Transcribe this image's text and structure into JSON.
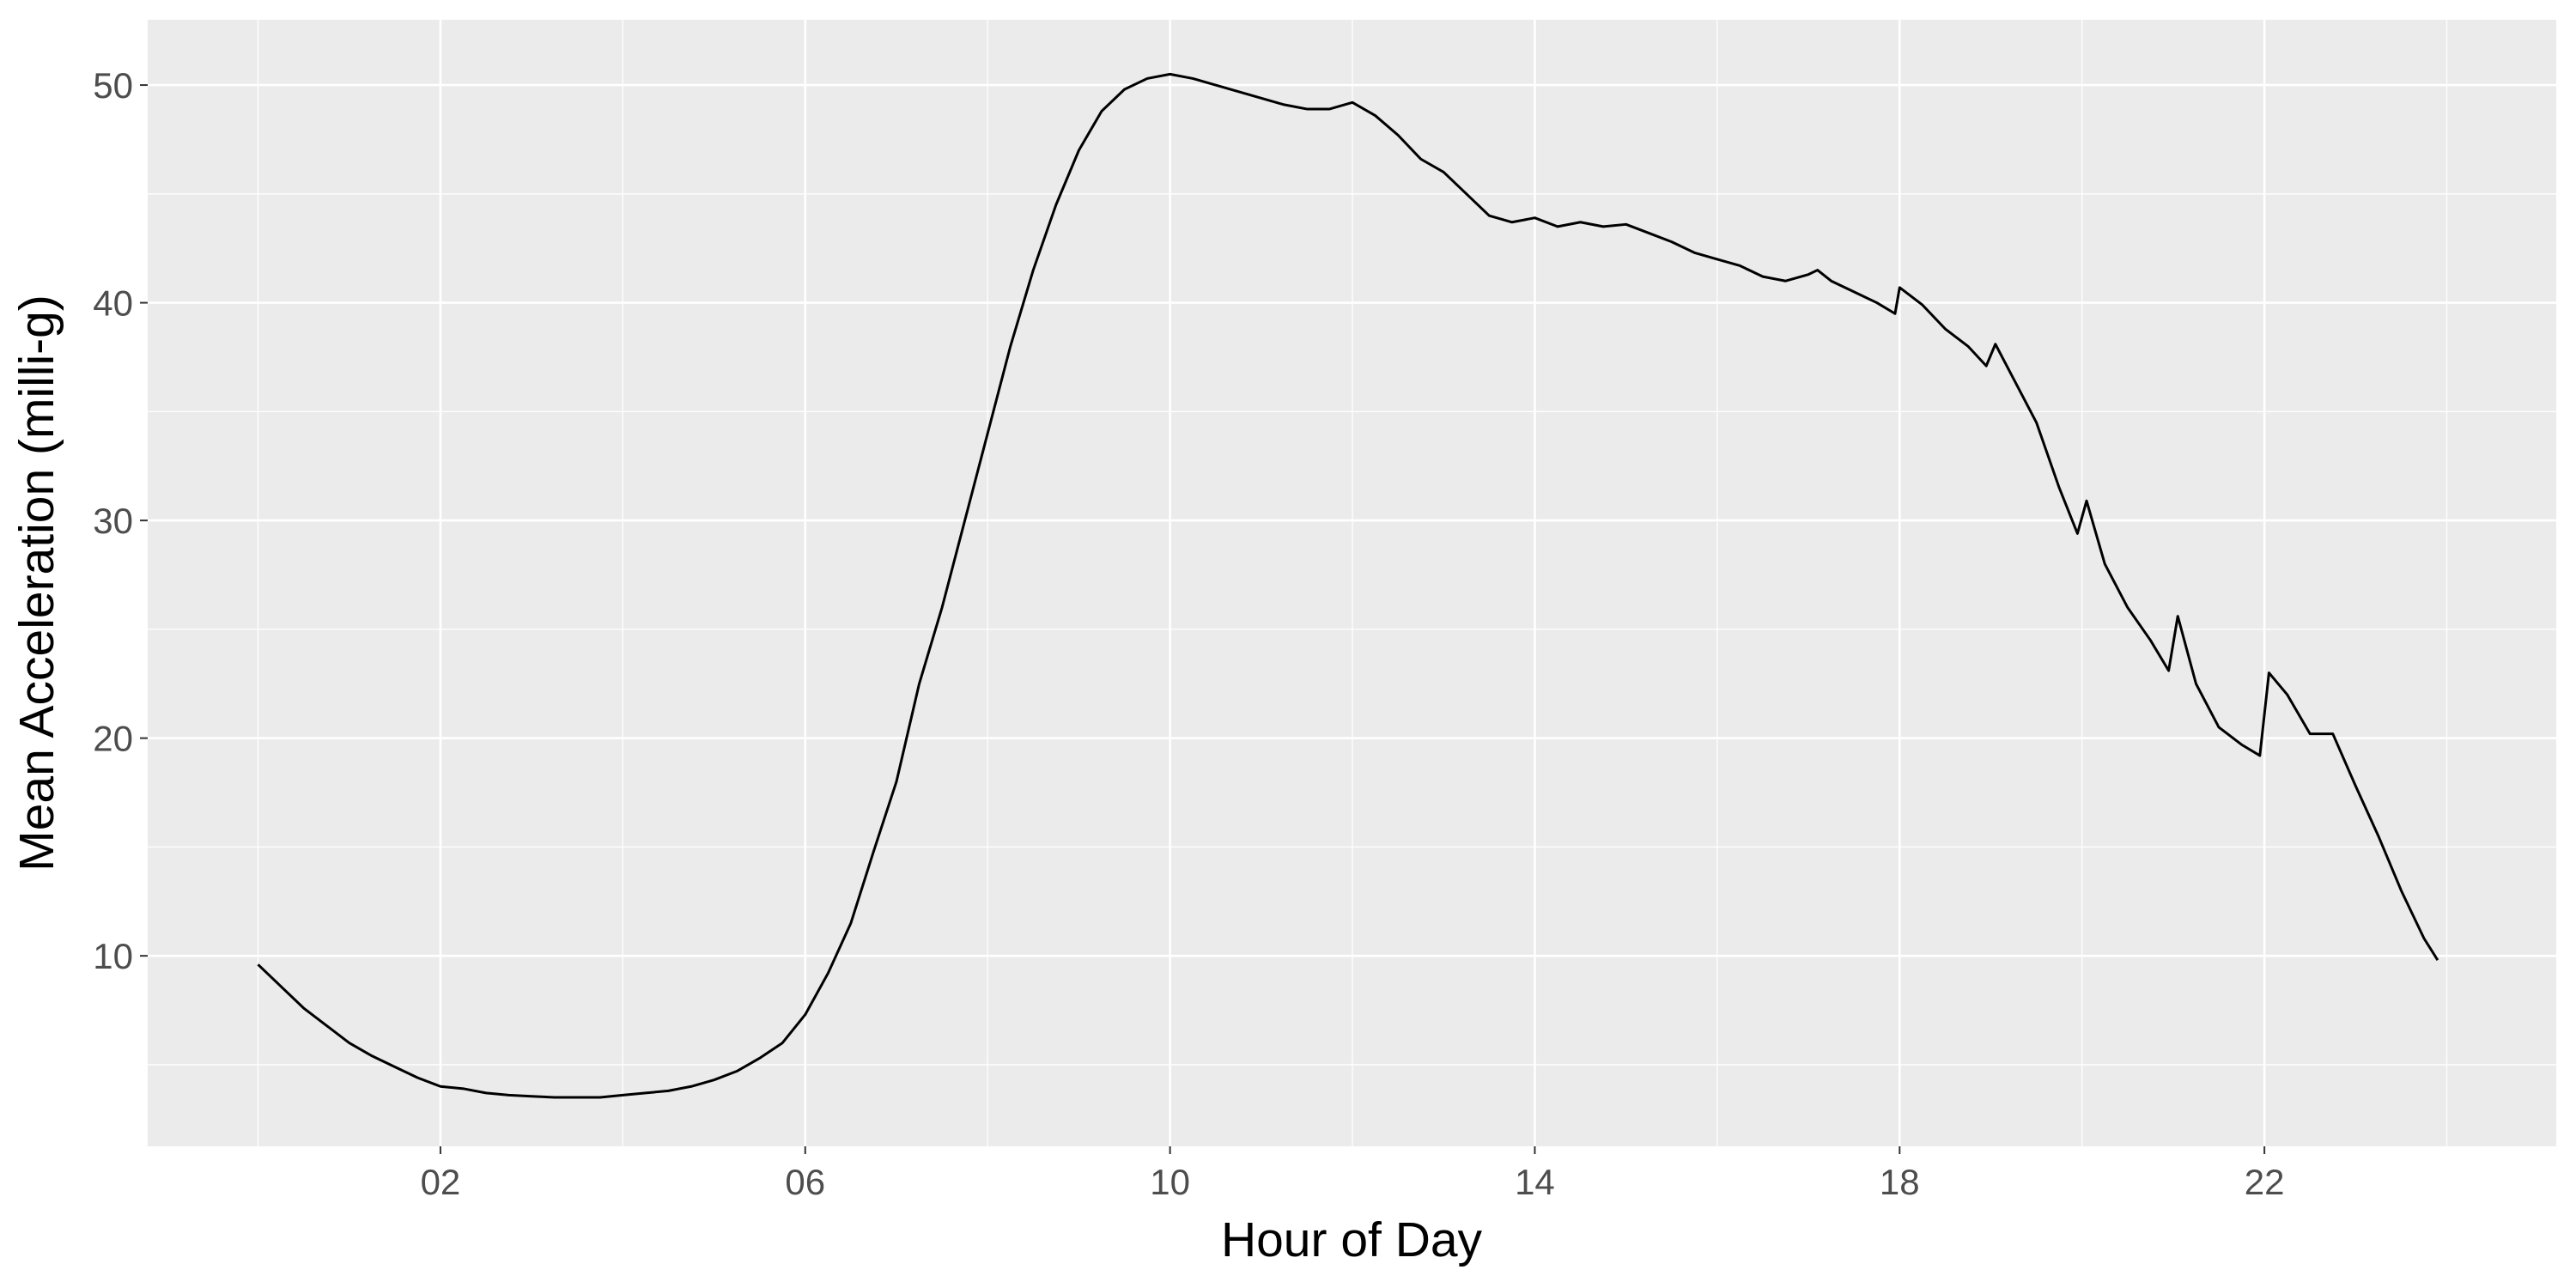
{
  "chart_data": {
    "type": "line",
    "xlabel": "Hour of Day",
    "ylabel": "Mean Acceleration (milli-g)",
    "x": [
      0,
      0.25,
      0.5,
      0.75,
      1,
      1.25,
      1.5,
      1.75,
      2,
      2.25,
      2.5,
      2.75,
      3,
      3.25,
      3.5,
      3.75,
      4,
      4.25,
      4.5,
      4.75,
      5,
      5.25,
      5.5,
      5.75,
      6,
      6.25,
      6.5,
      6.75,
      7,
      7.25,
      7.5,
      7.75,
      8,
      8.25,
      8.5,
      8.75,
      9,
      9.25,
      9.5,
      9.75,
      10,
      10.25,
      10.5,
      10.75,
      11,
      11.25,
      11.5,
      11.75,
      12,
      12.25,
      12.5,
      12.75,
      13,
      13.25,
      13.5,
      13.75,
      14,
      14.25,
      14.5,
      14.75,
      15,
      15.25,
      15.5,
      15.75,
      16,
      16.25,
      16.5,
      16.75,
      17,
      17.1,
      17.25,
      17.5,
      17.75,
      17.95,
      18,
      18.25,
      18.5,
      18.75,
      18.95,
      19.05,
      19.25,
      19.5,
      19.75,
      19.95,
      20.05,
      20.25,
      20.5,
      20.75,
      20.95,
      21.05,
      21.25,
      21.5,
      21.75,
      21.95,
      22.05,
      22.25,
      22.5,
      22.75,
      23,
      23.25,
      23.5,
      23.75,
      23.9
    ],
    "values": [
      9.6,
      8.6,
      7.6,
      6.8,
      6.0,
      5.4,
      4.9,
      4.4,
      4.0,
      3.9,
      3.7,
      3.6,
      3.55,
      3.5,
      3.5,
      3.5,
      3.6,
      3.7,
      3.8,
      4.0,
      4.3,
      4.7,
      5.3,
      6.0,
      7.3,
      9.2,
      11.5,
      14.8,
      18.0,
      22.5,
      26.0,
      30.0,
      34.0,
      38.0,
      41.5,
      44.5,
      47.0,
      48.8,
      49.8,
      50.3,
      50.5,
      50.3,
      50.0,
      49.7,
      49.4,
      49.1,
      48.9,
      48.9,
      49.2,
      48.6,
      47.7,
      46.6,
      46.0,
      45.0,
      44.0,
      43.7,
      43.9,
      43.5,
      43.7,
      43.5,
      43.6,
      43.2,
      42.8,
      42.3,
      42.0,
      41.7,
      41.2,
      41.0,
      41.3,
      41.5,
      41.0,
      40.5,
      40.0,
      39.5,
      40.7,
      39.9,
      38.8,
      38.0,
      37.1,
      38.1,
      36.5,
      34.5,
      31.5,
      29.4,
      30.9,
      28.0,
      26.0,
      24.5,
      23.1,
      25.6,
      22.5,
      20.5,
      19.7,
      19.2,
      23.0,
      22.0,
      20.2,
      20.2,
      17.8,
      15.5,
      13.0,
      10.8,
      9.8
    ],
    "color": "#000000",
    "xlim": [
      -1.21,
      25.2
    ],
    "ylim": [
      1.25,
      53.0
    ],
    "xticks": [
      {
        "value": 2,
        "label": "02"
      },
      {
        "value": 6,
        "label": "06"
      },
      {
        "value": 10,
        "label": "10"
      },
      {
        "value": 14,
        "label": "14"
      },
      {
        "value": 18,
        "label": "18"
      },
      {
        "value": 22,
        "label": "22"
      }
    ],
    "yticks": [
      10,
      20,
      30,
      40,
      50
    ],
    "x_minor_breaks": [
      0,
      4,
      8,
      12,
      16,
      20,
      24
    ],
    "y_minor_breaks": [
      5,
      15,
      25,
      35,
      45
    ],
    "grid": true
  }
}
